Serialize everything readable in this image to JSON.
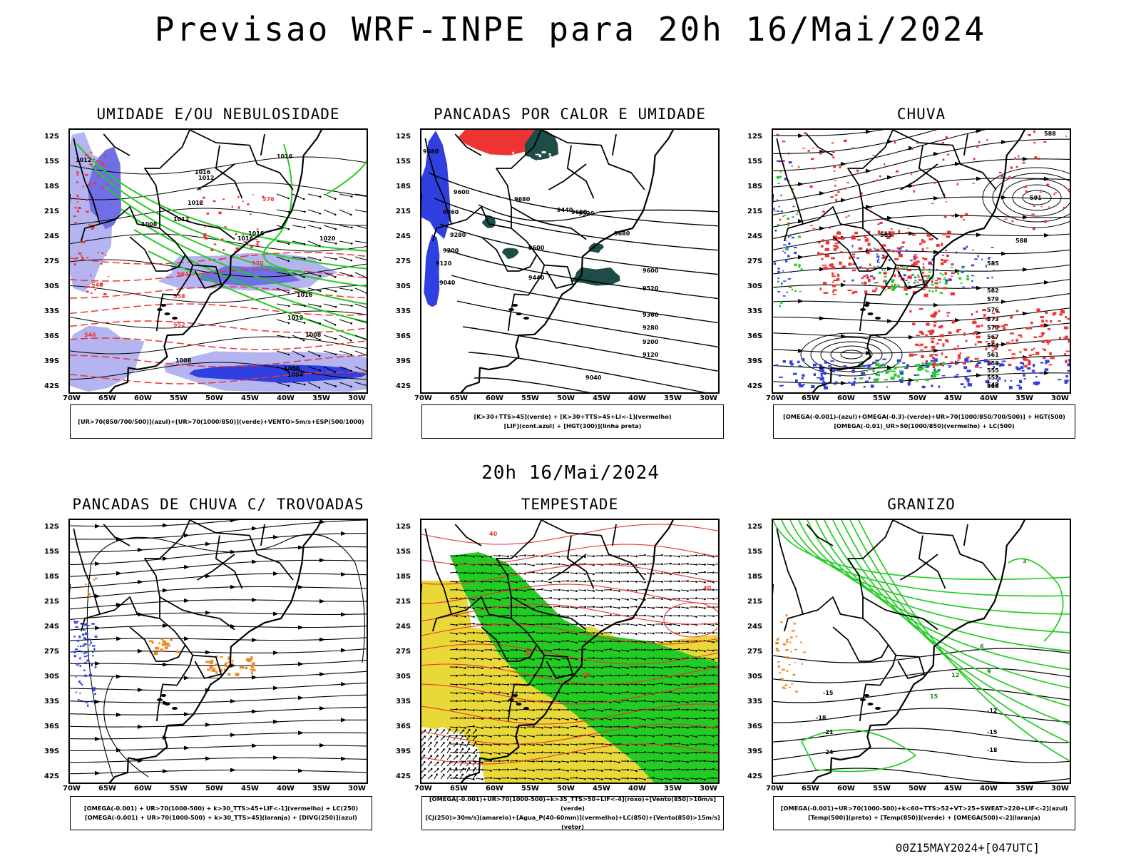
{
  "header": {
    "title": "Previsao WRF-INPE  para 20h 16/Mai/2024"
  },
  "mid_label": "20h 16/Mai/2024",
  "footer": "00Z15MAY2024+[047UTC]",
  "axes": {
    "lat_labels": [
      "12S",
      "15S",
      "18S",
      "21S",
      "24S",
      "27S",
      "30S",
      "33S",
      "36S",
      "39S",
      "42S"
    ],
    "lon_labels": [
      "70W",
      "65W",
      "60W",
      "55W",
      "50W",
      "45W",
      "40W",
      "35W",
      "30W"
    ]
  },
  "colors": {
    "blue": "#3040e0",
    "light_purple": "#b4b4f0",
    "green": "#22cc22",
    "red": "#ee3333",
    "dark_teal": "#1e4d48",
    "yellow": "#e8d838",
    "orange": "#ee8822",
    "black": "#000000"
  },
  "panels": [
    {
      "id": "umidade",
      "title": "UMIDADE E/OU NEBULOSIDADE",
      "legend": [
        "[UR>70(850/700/500)](azul)+[UR>70(1000/850)](verde)+VENTO>5m/s+ESP(500/1000)"
      ],
      "contour_labels": [
        "1012",
        "1012",
        "1016",
        "1016",
        "1012",
        "1008",
        "1012",
        "1016",
        "1016",
        "1020",
        "1016",
        "1012",
        "1008",
        "1004",
        "1000",
        "1008",
        "570",
        "564",
        "558",
        "552",
        "546",
        "540",
        "576"
      ]
    },
    {
      "id": "pancadas_calor",
      "title": "PANCADAS POR CALOR E UMIDADE",
      "legend": [
        "[K>30+TTS>45](verde) + [K>30+TTS>45+LI<-1](vermelho)",
        "[LIF](cont.azul) + [HGT(300)](linha preta)"
      ],
      "contour_labels": [
        "9680",
        "9600",
        "9520",
        "9440",
        "9360",
        "9280",
        "9200",
        "9120",
        "9040",
        "9680",
        "9680",
        "9680",
        "9600",
        "9600",
        "9520",
        "9440",
        "9360",
        "9280",
        "9200",
        "9120",
        "9040"
      ]
    },
    {
      "id": "chuva",
      "title": "CHUVA",
      "legend": [
        "[OMEGA(-0.001)-(azul)+OMEGA(-0.3)-(verde)+UR>70(1000/850/700/500)] + HGT(500)",
        "[OMEGA(-0.01)_UR>50(1000/850)(vermelho) + LC(500)"
      ],
      "contour_labels": [
        "588",
        "585",
        "591",
        "588",
        "585",
        "582",
        "579",
        "576",
        "573",
        "570",
        "567",
        "564",
        "561",
        "558",
        "555",
        "552",
        "549",
        "546"
      ]
    },
    {
      "id": "pancadas_trovoadas",
      "title": "PANCADAS DE CHUVA C/ TROVOADAS",
      "legend": [
        "[OMEGA(-0.001) + UR>70(1000-500) + k>30_TTS>45+LIF<-1](vermelho) + LC(250)",
        "[OMEGA(-0.001) + UR>70(1000-500) + k>30_TTS>45](laranja) + [DIVG(250)](azul)"
      ],
      "contour_labels": []
    },
    {
      "id": "tempestade",
      "title": "TEMPESTADE",
      "legend": [
        "[OMEGA(-0.001)+UR>70(1000-500)+k>35_TTS>50+LIF<-4](roxo)+[Vento(850)>10m/s](verde)",
        "[CJ(250)>30m/s](amarelo)+[Agua_P(40-60mm)](vermelho)+LC(850)+[Vento(850)>15m/s](vetor)"
      ],
      "contour_labels": [
        "40",
        "50",
        "50",
        "40"
      ]
    },
    {
      "id": "granizo",
      "title": "GRANIZO",
      "legend": [
        "[OMEGA(-0.001)+UR>70(1000-500)+k<60+TTS>52+VT>25+SWEAT>220+LIF<-2](azul)",
        "[Temp(500)](preto) + [Temp(850)](verde) + [OMEGA(500)<-2](laranja)"
      ],
      "contour_labels": [
        "-15",
        "-18",
        "-21",
        "-24",
        "-12",
        "-15",
        "-18",
        "3",
        "6",
        "9",
        "12",
        "15"
      ]
    }
  ]
}
